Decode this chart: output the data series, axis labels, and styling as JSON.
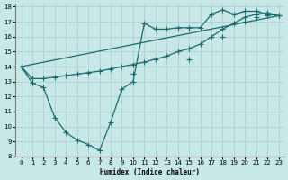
{
  "title": "",
  "xlabel": "Humidex (Indice chaleur)",
  "ylabel": "",
  "bg_color": "#c8e8e8",
  "grid_color": "#b0d4d4",
  "line_color": "#1a6b6b",
  "xlim": [
    -0.5,
    23.5
  ],
  "ylim": [
    8,
    18.2
  ],
  "xticks": [
    0,
    1,
    2,
    3,
    4,
    5,
    6,
    7,
    8,
    9,
    10,
    11,
    12,
    13,
    14,
    15,
    16,
    17,
    18,
    19,
    20,
    21,
    22,
    23
  ],
  "yticks": [
    8,
    9,
    10,
    11,
    12,
    13,
    14,
    15,
    16,
    17,
    18
  ],
  "line1_x": [
    0,
    1,
    2,
    3,
    4,
    5,
    6,
    7,
    8,
    9,
    10,
    11,
    12,
    13,
    14,
    15,
    16,
    17,
    18,
    19,
    20,
    21,
    22,
    23
  ],
  "line1_y": [
    14.0,
    12.9,
    12.6,
    10.6,
    9.6,
    9.1,
    8.8,
    8.4,
    10.3,
    12.5,
    13.0,
    16.9,
    16.5,
    16.5,
    16.6,
    16.6,
    16.6,
    17.5,
    17.8,
    17.5,
    17.7,
    17.7,
    17.5,
    17.4
  ],
  "line2_x": [
    0,
    1,
    2,
    3,
    4,
    5,
    6,
    7,
    8,
    9,
    10,
    11,
    12,
    13,
    14,
    15,
    16,
    17,
    18,
    19,
    20,
    21,
    22,
    23
  ],
  "line2_y": [
    14.0,
    13.2,
    13.2,
    13.3,
    13.4,
    13.5,
    13.6,
    13.7,
    13.85,
    14.0,
    14.15,
    14.3,
    14.5,
    14.7,
    15.0,
    15.2,
    15.5,
    16.0,
    16.5,
    16.9,
    17.3,
    17.5,
    17.6,
    17.4
  ],
  "line3_x": [
    0,
    23
  ],
  "line3_y": [
    14.0,
    17.4
  ],
  "marker_x3": [
    0,
    10,
    15,
    18,
    20,
    21,
    22,
    23
  ],
  "marker_y3": [
    14.0,
    13.5,
    14.5,
    16.0,
    17.0,
    17.3,
    17.4,
    17.4
  ]
}
